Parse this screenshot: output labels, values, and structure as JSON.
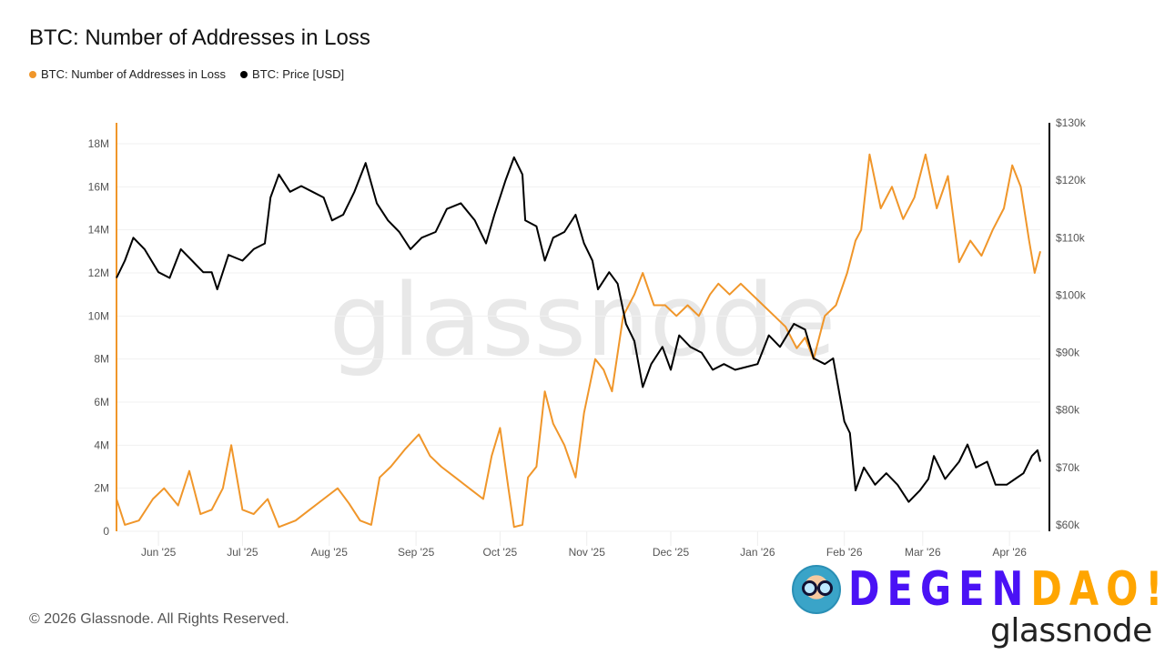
{
  "chart_data": {
    "type": "line",
    "title": "BTC: Number of Addresses in Loss",
    "legend_position": "top-left",
    "grid": true,
    "watermark": "glassnode",
    "x_ticks": [
      "Jun '25",
      "Jul '25",
      "Aug '25",
      "Sep '25",
      "Oct '25",
      "Nov '25",
      "Dec '25",
      "Jan '26",
      "Feb '26",
      "Mar '26",
      "Apr '26"
    ],
    "x_range": [
      "2025-05-17",
      "2026-04-12"
    ],
    "y_left": {
      "ticks": [
        "0",
        "2M",
        "4M",
        "6M",
        "8M",
        "10M",
        "12M",
        "14M",
        "16M",
        "18M"
      ],
      "range": [
        0,
        19000000
      ]
    },
    "y_right": {
      "ticks": [
        "$60k",
        "$70k",
        "$80k",
        "$90k",
        "$100k",
        "$110k",
        "$120k",
        "$130k"
      ],
      "range": [
        60000,
        130000
      ]
    },
    "series": [
      {
        "name": "BTC: Number of Addresses in Loss",
        "axis": "left",
        "color": "#f0962a",
        "points": [
          [
            "2025-05-17",
            1.5
          ],
          [
            "2025-05-20",
            0.3
          ],
          [
            "2025-05-25",
            0.5
          ],
          [
            "2025-05-30",
            1.5
          ],
          [
            "2025-06-03",
            2.0
          ],
          [
            "2025-06-08",
            1.2
          ],
          [
            "2025-06-12",
            2.8
          ],
          [
            "2025-06-16",
            0.8
          ],
          [
            "2025-06-20",
            1.0
          ],
          [
            "2025-06-24",
            2.0
          ],
          [
            "2025-06-27",
            4.0
          ],
          [
            "2025-07-01",
            1.0
          ],
          [
            "2025-07-05",
            0.8
          ],
          [
            "2025-07-10",
            1.5
          ],
          [
            "2025-07-14",
            0.2
          ],
          [
            "2025-07-20",
            0.5
          ],
          [
            "2025-07-25",
            1.0
          ],
          [
            "2025-07-30",
            1.5
          ],
          [
            "2025-08-04",
            2.0
          ],
          [
            "2025-08-08",
            1.3
          ],
          [
            "2025-08-12",
            0.5
          ],
          [
            "2025-08-16",
            0.3
          ],
          [
            "2025-08-19",
            2.5
          ],
          [
            "2025-08-23",
            3.0
          ],
          [
            "2025-08-28",
            3.8
          ],
          [
            "2025-09-02",
            4.5
          ],
          [
            "2025-09-06",
            3.5
          ],
          [
            "2025-09-10",
            3.0
          ],
          [
            "2025-09-15",
            2.5
          ],
          [
            "2025-09-20",
            2.0
          ],
          [
            "2025-09-25",
            1.5
          ],
          [
            "2025-09-28",
            3.5
          ],
          [
            "2025-10-01",
            4.8
          ],
          [
            "2025-10-04",
            2.0
          ],
          [
            "2025-10-06",
            0.2
          ],
          [
            "2025-10-09",
            0.3
          ],
          [
            "2025-10-11",
            2.5
          ],
          [
            "2025-10-14",
            3.0
          ],
          [
            "2025-10-17",
            6.5
          ],
          [
            "2025-10-20",
            5.0
          ],
          [
            "2025-10-24",
            4.0
          ],
          [
            "2025-10-28",
            2.5
          ],
          [
            "2025-10-31",
            5.5
          ],
          [
            "2025-11-04",
            8.0
          ],
          [
            "2025-11-07",
            7.5
          ],
          [
            "2025-11-10",
            6.5
          ],
          [
            "2025-11-14",
            10.0
          ],
          [
            "2025-11-18",
            11.0
          ],
          [
            "2025-11-21",
            12.0
          ],
          [
            "2025-11-25",
            10.5
          ],
          [
            "2025-11-29",
            10.5
          ],
          [
            "2025-12-03",
            10.0
          ],
          [
            "2025-12-07",
            10.5
          ],
          [
            "2025-12-11",
            10.0
          ],
          [
            "2025-12-15",
            11.0
          ],
          [
            "2025-12-18",
            11.5
          ],
          [
            "2025-12-22",
            11.0
          ],
          [
            "2025-12-26",
            11.5
          ],
          [
            "2025-12-30",
            11.0
          ],
          [
            "2026-01-03",
            10.5
          ],
          [
            "2026-01-07",
            10.0
          ],
          [
            "2026-01-11",
            9.5
          ],
          [
            "2026-01-15",
            8.5
          ],
          [
            "2026-01-18",
            9.0
          ],
          [
            "2026-01-21",
            8.0
          ],
          [
            "2026-01-25",
            10.0
          ],
          [
            "2026-01-29",
            10.5
          ],
          [
            "2026-02-02",
            12.0
          ],
          [
            "2026-02-05",
            13.5
          ],
          [
            "2026-02-07",
            14.0
          ],
          [
            "2026-02-10",
            17.5
          ],
          [
            "2026-02-14",
            15.0
          ],
          [
            "2026-02-18",
            16.0
          ],
          [
            "2026-02-22",
            14.5
          ],
          [
            "2026-02-26",
            15.5
          ],
          [
            "2026-03-02",
            17.5
          ],
          [
            "2026-03-06",
            15.0
          ],
          [
            "2026-03-10",
            16.5
          ],
          [
            "2026-03-14",
            12.5
          ],
          [
            "2026-03-18",
            13.5
          ],
          [
            "2026-03-22",
            12.8
          ],
          [
            "2026-03-26",
            14.0
          ],
          [
            "2026-03-30",
            15.0
          ],
          [
            "2026-04-02",
            17.0
          ],
          [
            "2026-04-05",
            16.0
          ],
          [
            "2026-04-08",
            13.5
          ],
          [
            "2026-04-10",
            12.0
          ],
          [
            "2026-04-12",
            13.0
          ]
        ]
      },
      {
        "name": "BTC: Price [USD]",
        "axis": "right",
        "color": "#000000",
        "points": [
          [
            "2025-05-17",
            103
          ],
          [
            "2025-05-20",
            106
          ],
          [
            "2025-05-23",
            110
          ],
          [
            "2025-05-27",
            108
          ],
          [
            "2025-06-01",
            104
          ],
          [
            "2025-06-05",
            103
          ],
          [
            "2025-06-09",
            108
          ],
          [
            "2025-06-13",
            106
          ],
          [
            "2025-06-17",
            104
          ],
          [
            "2025-06-20",
            104
          ],
          [
            "2025-06-22",
            101
          ],
          [
            "2025-06-26",
            107
          ],
          [
            "2025-07-01",
            106
          ],
          [
            "2025-07-05",
            108
          ],
          [
            "2025-07-09",
            109
          ],
          [
            "2025-07-11",
            117
          ],
          [
            "2025-07-14",
            121
          ],
          [
            "2025-07-18",
            118
          ],
          [
            "2025-07-22",
            119
          ],
          [
            "2025-07-26",
            118
          ],
          [
            "2025-07-30",
            117
          ],
          [
            "2025-08-02",
            113
          ],
          [
            "2025-08-06",
            114
          ],
          [
            "2025-08-10",
            118
          ],
          [
            "2025-08-14",
            123
          ],
          [
            "2025-08-18",
            116
          ],
          [
            "2025-08-22",
            113
          ],
          [
            "2025-08-26",
            111
          ],
          [
            "2025-08-30",
            108
          ],
          [
            "2025-09-03",
            110
          ],
          [
            "2025-09-08",
            111
          ],
          [
            "2025-09-12",
            115
          ],
          [
            "2025-09-17",
            116
          ],
          [
            "2025-09-22",
            113
          ],
          [
            "2025-09-26",
            109
          ],
          [
            "2025-09-29",
            114
          ],
          [
            "2025-10-03",
            120
          ],
          [
            "2025-10-06",
            124
          ],
          [
            "2025-10-09",
            121
          ],
          [
            "2025-10-10",
            113
          ],
          [
            "2025-10-14",
            112
          ],
          [
            "2025-10-17",
            106
          ],
          [
            "2025-10-20",
            110
          ],
          [
            "2025-10-24",
            111
          ],
          [
            "2025-10-28",
            114
          ],
          [
            "2025-10-31",
            109
          ],
          [
            "2025-11-03",
            106
          ],
          [
            "2025-11-05",
            101
          ],
          [
            "2025-11-09",
            104
          ],
          [
            "2025-11-12",
            102
          ],
          [
            "2025-11-15",
            95
          ],
          [
            "2025-11-18",
            92
          ],
          [
            "2025-11-21",
            84
          ],
          [
            "2025-11-24",
            88
          ],
          [
            "2025-11-28",
            91
          ],
          [
            "2025-12-01",
            87
          ],
          [
            "2025-12-04",
            93
          ],
          [
            "2025-12-08",
            91
          ],
          [
            "2025-12-12",
            90
          ],
          [
            "2025-12-16",
            87
          ],
          [
            "2025-12-20",
            88
          ],
          [
            "2025-12-24",
            87
          ],
          [
            "2025-12-28",
            87.5
          ],
          [
            "2026-01-01",
            88
          ],
          [
            "2026-01-05",
            93
          ],
          [
            "2026-01-09",
            91
          ],
          [
            "2026-01-14",
            95
          ],
          [
            "2026-01-18",
            94
          ],
          [
            "2026-01-21",
            89
          ],
          [
            "2026-01-25",
            88
          ],
          [
            "2026-01-28",
            89
          ],
          [
            "2026-02-01",
            78
          ],
          [
            "2026-02-03",
            76
          ],
          [
            "2026-02-05",
            66
          ],
          [
            "2026-02-08",
            70
          ],
          [
            "2026-02-12",
            67
          ],
          [
            "2026-02-16",
            69
          ],
          [
            "2026-02-20",
            67
          ],
          [
            "2026-02-24",
            64
          ],
          [
            "2026-02-28",
            66
          ],
          [
            "2026-03-03",
            68
          ],
          [
            "2026-03-05",
            72
          ],
          [
            "2026-03-09",
            68
          ],
          [
            "2026-03-14",
            71
          ],
          [
            "2026-03-17",
            74
          ],
          [
            "2026-03-20",
            70
          ],
          [
            "2026-03-24",
            71
          ],
          [
            "2026-03-27",
            67
          ],
          [
            "2026-03-31",
            67
          ],
          [
            "2026-04-03",
            68
          ],
          [
            "2026-04-06",
            69
          ],
          [
            "2026-04-09",
            72
          ],
          [
            "2026-04-11",
            73
          ],
          [
            "2026-04-12",
            71
          ]
        ]
      }
    ]
  },
  "footer": {
    "copyright": "© 2026 Glassnode. All Rights Reserved."
  },
  "branding": {
    "degen_part1": "DEGEN",
    "degen_part2": "DAO!",
    "glassnode_logo": "glassnode"
  }
}
